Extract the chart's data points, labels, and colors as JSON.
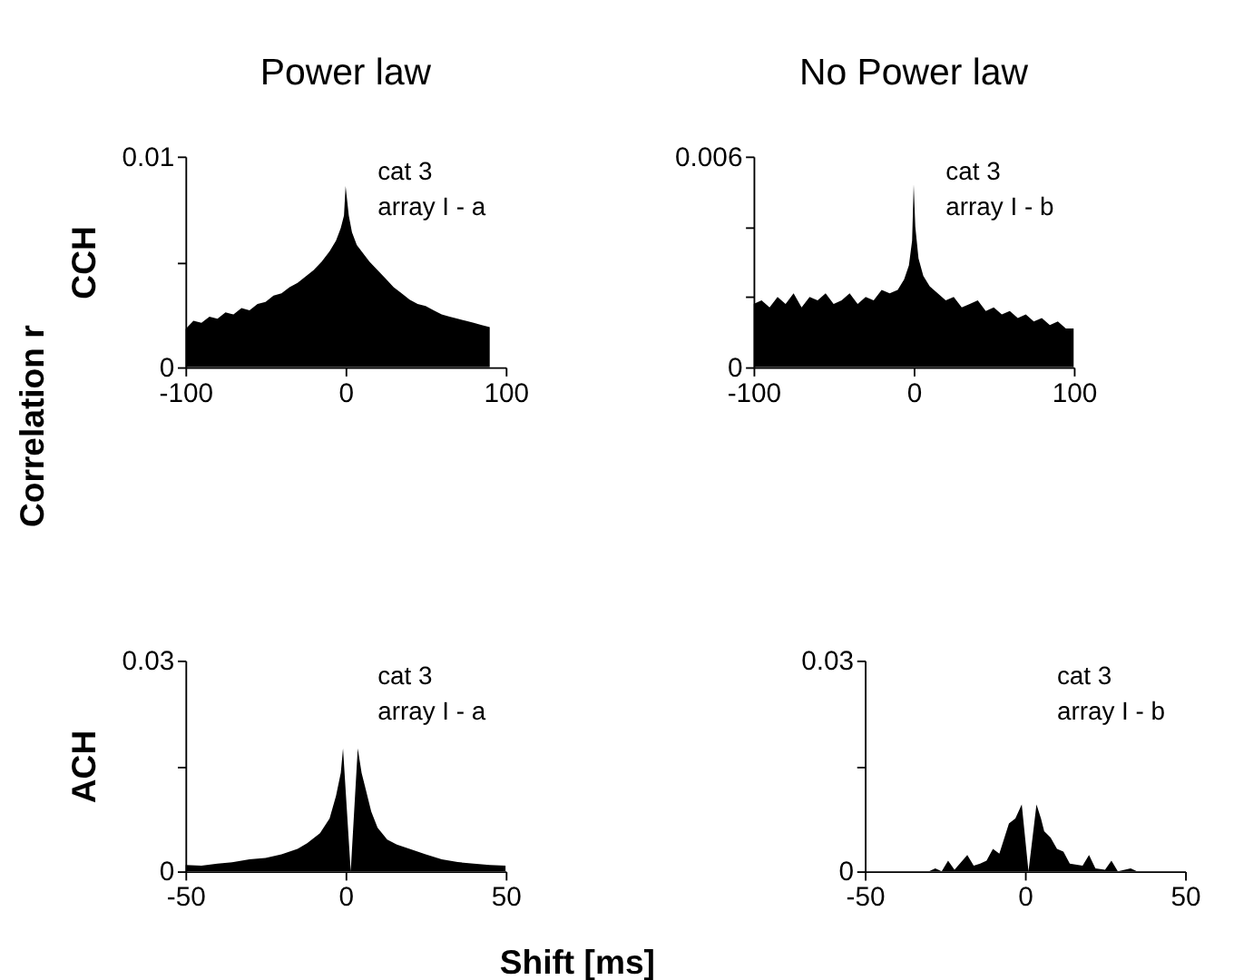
{
  "chart_data": [
    {
      "type": "area",
      "title": "Power law",
      "ylabel": "CCH",
      "xlim": [
        -100,
        100
      ],
      "ylim": [
        0,
        0.01
      ],
      "xticks": [
        -100,
        0,
        100
      ],
      "yticks": [
        0,
        {
          "value": 0.005,
          "label": null
        },
        0.01
      ],
      "annotations": [
        "cat 3",
        "array I - a",
        "Correlation r"
      ],
      "x": [
        -100,
        -95,
        -90,
        -85,
        -80,
        -75,
        -70,
        -65,
        -60,
        -55,
        -50,
        -45,
        -40,
        -35,
        -30,
        -25,
        -20,
        -15,
        -10,
        -6,
        -3,
        -1,
        0,
        1,
        2,
        4,
        7,
        10,
        15,
        20,
        25,
        30,
        35,
        40,
        45,
        50,
        55,
        60,
        65,
        70,
        75,
        80,
        85,
        90
      ],
      "series": [
        {
          "color": "#000000",
          "values": [
            0.0018,
            0.0022,
            0.0021,
            0.0024,
            0.0023,
            0.0026,
            0.0025,
            0.0028,
            0.0027,
            0.003,
            0.0031,
            0.0034,
            0.0035,
            0.0038,
            0.004,
            0.0043,
            0.0046,
            0.005,
            0.0055,
            0.006,
            0.0066,
            0.0072,
            0.0086,
            0.0079,
            0.0072,
            0.0064,
            0.0058,
            0.0055,
            0.005,
            0.0046,
            0.0042,
            0.0038,
            0.0035,
            0.0032,
            0.003,
            0.0029,
            0.0027,
            0.0025,
            0.0024,
            0.0023,
            0.0022,
            0.0021,
            0.002,
            0.0019
          ]
        }
      ]
    },
    {
      "type": "area",
      "title": "No Power law",
      "xlim": [
        -100,
        100
      ],
      "ylim": [
        0,
        0.006
      ],
      "xticks": [
        -100,
        0,
        100
      ],
      "yticks": [
        0,
        {
          "value": 0.002,
          "label": null
        },
        {
          "value": 0.004,
          "label": null
        },
        0.006
      ],
      "annotations": [
        "cat 3",
        "array I - b"
      ],
      "x": [
        -100,
        -95,
        -90,
        -85,
        -80,
        -75,
        -70,
        -65,
        -60,
        -55,
        -50,
        -45,
        -40,
        -35,
        -30,
        -25,
        -20,
        -15,
        -10,
        -6,
        -3,
        -1,
        0,
        1,
        3,
        6,
        10,
        15,
        20,
        25,
        30,
        35,
        40,
        45,
        50,
        55,
        60,
        65,
        70,
        75,
        80,
        85,
        90,
        95,
        100
      ],
      "series": [
        {
          "color": "#000000",
          "values": [
            0.0018,
            0.0019,
            0.0017,
            0.002,
            0.0018,
            0.0021,
            0.0017,
            0.002,
            0.0019,
            0.0021,
            0.0018,
            0.0019,
            0.0021,
            0.0018,
            0.002,
            0.0019,
            0.0022,
            0.0021,
            0.0022,
            0.0025,
            0.0029,
            0.0036,
            0.0052,
            0.004,
            0.0031,
            0.0026,
            0.0023,
            0.0021,
            0.0019,
            0.002,
            0.0017,
            0.0018,
            0.0019,
            0.0016,
            0.0017,
            0.0015,
            0.0016,
            0.0014,
            0.0015,
            0.0013,
            0.0014,
            0.0012,
            0.0013,
            0.0011,
            0.0011
          ]
        }
      ]
    },
    {
      "type": "area",
      "ylabel": "ACH",
      "xlabel": "Shift [ms]",
      "xlim": [
        -50,
        50
      ],
      "ylim": [
        0,
        0.03
      ],
      "xticks": [
        -50,
        0,
        50
      ],
      "yticks": [
        0,
        {
          "value": 0.015,
          "label": null
        },
        0.03
      ],
      "annotations": [
        "cat 3",
        "array I - a"
      ],
      "x": [
        -50,
        -45,
        -40,
        -35,
        -30,
        -25,
        -20,
        -15,
        -12,
        -8,
        -5,
        -3,
        -1.5,
        -0.8,
        1.6,
        3.8,
        5,
        6,
        8,
        10,
        13,
        16,
        20,
        25,
        30,
        35,
        40,
        45,
        50
      ],
      "series": [
        {
          "color": "#000000",
          "values": [
            0.0009,
            0.0008,
            0.0011,
            0.0013,
            0.0017,
            0.0019,
            0.0024,
            0.0032,
            0.004,
            0.0054,
            0.0075,
            0.0107,
            0.014,
            0.0175,
            0,
            0.0175,
            0.014,
            0.0122,
            0.0085,
            0.0062,
            0.0045,
            0.0038,
            0.0032,
            0.0024,
            0.0017,
            0.0013,
            0.0011,
            0.0009,
            0.0008
          ]
        }
      ]
    },
    {
      "type": "area",
      "xlim": [
        -50,
        50
      ],
      "ylim": [
        0,
        0.03
      ],
      "xticks": [
        -50,
        0,
        50
      ],
      "yticks": [
        0,
        {
          "value": 0.015,
          "label": null
        },
        0.03
      ],
      "annotations": [
        "cat 3",
        "array I - b"
      ],
      "x": [
        -50,
        -30,
        -28,
        -26,
        -24,
        -22,
        -18,
        -16,
        -14,
        -12,
        -10,
        -8,
        -5,
        -3,
        -1,
        1.1,
        3.6,
        5,
        6,
        8,
        10,
        12,
        14,
        18,
        20,
        22,
        25,
        27,
        29,
        33,
        35,
        50
      ],
      "series": [
        {
          "color": "#000000",
          "values": [
            0,
            0,
            0.0004,
            0,
            0.0015,
            0.0002,
            0.0023,
            0.0008,
            0.0011,
            0.0015,
            0.0032,
            0.0025,
            0.0068,
            0.0075,
            0.0095,
            0,
            0.0095,
            0.0075,
            0.0057,
            0.0048,
            0.0032,
            0.0028,
            0.0011,
            0.0008,
            0.0023,
            0.0004,
            0.0002,
            0.0015,
            0,
            0.0004,
            0,
            0
          ]
        }
      ]
    }
  ]
}
